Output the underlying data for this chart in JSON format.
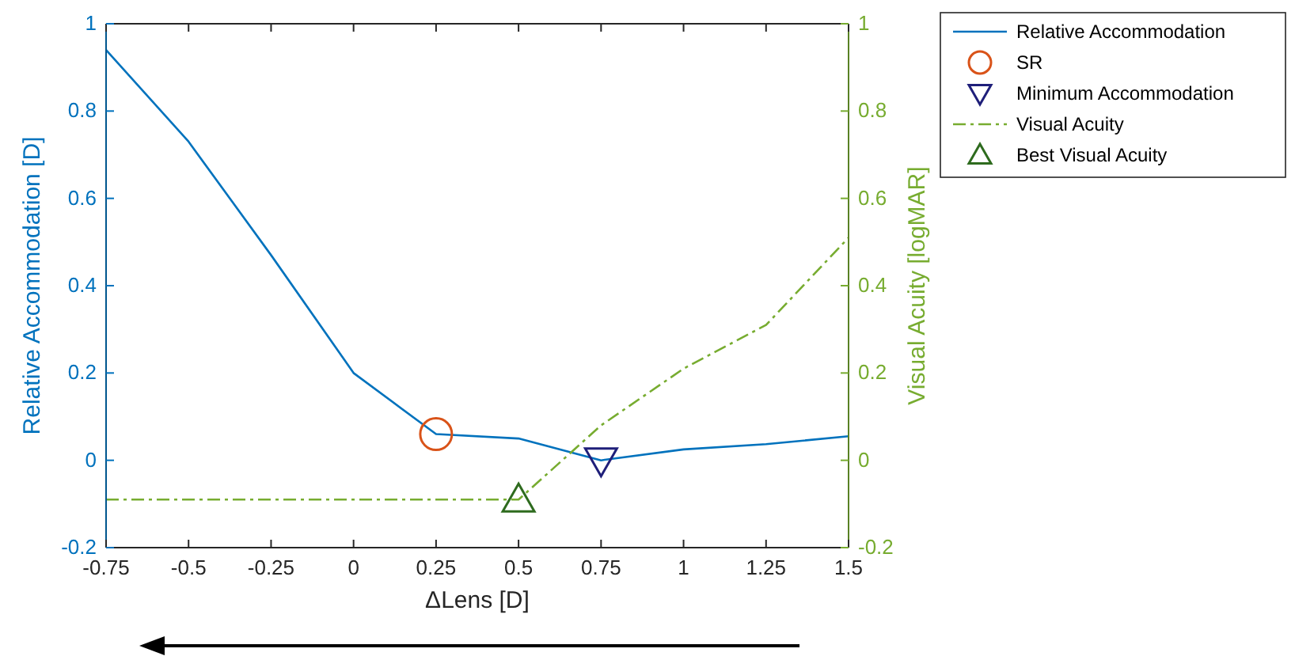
{
  "chart_data": {
    "type": "line",
    "xlabel": "ΔLens [D]",
    "ylabel": "Relative Accommodation [D]",
    "y2label": "Visual Acuity [logMAR]",
    "xlim": [
      -0.75,
      1.5
    ],
    "xticks": [
      -0.75,
      -0.5,
      -0.25,
      0,
      0.25,
      0.5,
      0.75,
      1,
      1.25,
      1.5
    ],
    "ylim": [
      -0.2,
      1
    ],
    "yticks": [
      -0.2,
      0,
      0.2,
      0.4,
      0.6,
      0.8,
      1
    ],
    "y2lim": [
      -0.2,
      1
    ],
    "y2ticks": [
      -0.2,
      0,
      0.2,
      0.4,
      0.6,
      0.8,
      1
    ],
    "legend": "top right",
    "grid": false,
    "series": [
      {
        "name": "Relative Accommodation",
        "color": "#0072bd",
        "line_style": "solid",
        "marker": "none",
        "x": [
          -0.75,
          -0.5,
          -0.25,
          0,
          0.25,
          0.5,
          0.75,
          1,
          1.25,
          1.5
        ],
        "values": [
          0.94,
          0.73,
          0.47,
          0.2,
          0.06,
          0.05,
          0,
          0.025,
          0.037,
          0.055
        ]
      },
      {
        "name": "SR",
        "type": "scatter",
        "color": "#d95319",
        "marker": "circle",
        "x": [
          0.25
        ],
        "values": [
          0.06
        ]
      },
      {
        "name": "Minimum Accommodation",
        "type": "scatter",
        "color": "#1f1f7a",
        "marker": "triangle-down",
        "x": [
          0.75
        ],
        "values": [
          0
        ]
      },
      {
        "name": "Visual Acuity",
        "axis": "y2",
        "color": "#77ac30",
        "line_style": "dashed",
        "marker": "none",
        "x": [
          -0.75,
          -0.5,
          -0.25,
          0,
          0.25,
          0.5,
          0.75,
          1,
          1.25,
          1.5
        ],
        "values": [
          -0.09,
          -0.09,
          -0.09,
          -0.09,
          -0.09,
          -0.09,
          0.08,
          0.21,
          0.31,
          0.51
        ]
      },
      {
        "name": "Best Visual Acuity",
        "type": "scatter",
        "axis": "y2",
        "color": "#2e6b1e",
        "marker": "triangle",
        "x": [
          0.5
        ],
        "values": [
          -0.09
        ]
      }
    ]
  }
}
